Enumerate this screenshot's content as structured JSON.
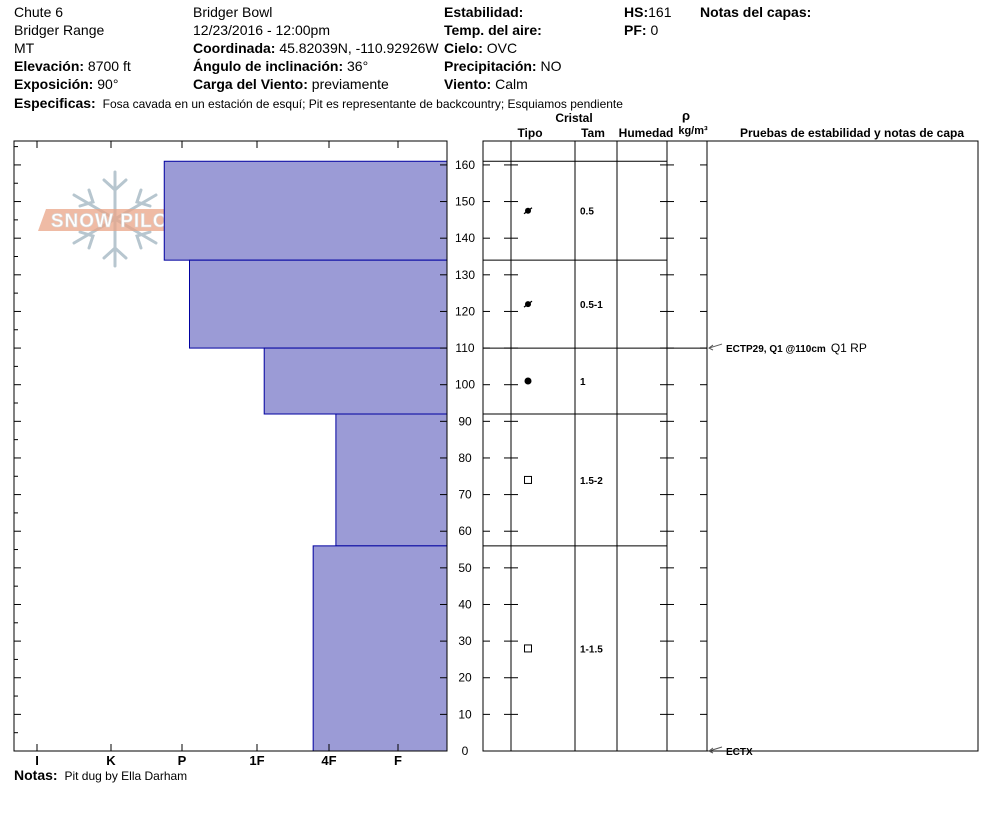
{
  "header": {
    "col1": [
      "Chute 6",
      "Bridger Range",
      "MT"
    ],
    "elevation": {
      "label": "Elevación:",
      "value": "8700 ft"
    },
    "aspect": {
      "label": "Exposición:",
      "value": "90°"
    },
    "col2": [
      "Bridger Bowl",
      "12/23/2016 - 12:00pm"
    ],
    "coordinate": {
      "label": "Coordinada:",
      "value": "45.82039N, -110.92926W"
    },
    "slope": {
      "label": "Ángulo de inclinación:",
      "value": "36°"
    },
    "wind_load": {
      "label": "Carga del Viento:",
      "value": "previamente"
    },
    "stability": {
      "label": "Estabilidad:",
      "value": ""
    },
    "air_temp": {
      "label": "Temp. del aire:",
      "value": ""
    },
    "sky": {
      "label": "Cielo:",
      "value": "OVC"
    },
    "precip": {
      "label": "Precipitación:",
      "value": "NO"
    },
    "wind": {
      "label": "Viento:",
      "value": "Calm"
    },
    "hs": {
      "label": "HS:",
      "value": "161"
    },
    "pf": {
      "label": "PF:",
      "value": "0"
    },
    "layer_notes": {
      "label": "Notas del capas:"
    },
    "specifics": {
      "label": "Especificas:",
      "value": "Fosa cavada en un estación de esquí; Pit es representante de backcountry; Esquiamos pendiente"
    }
  },
  "columns": {
    "crystal": "Cristal",
    "type": "Tipo",
    "size": "Tam",
    "moisture": "Humedad",
    "rho": "ρ",
    "density_unit": "kg/m³",
    "tests": "Pruebas de estabilidad y notas de capa"
  },
  "logo": {
    "text": "SNOW PILOT"
  },
  "notes": {
    "label": "Notas:",
    "value": "Pit dug by Ella Darham"
  },
  "chart_data": {
    "type": "bar",
    "ylim": [
      0,
      165
    ],
    "y_ticks": [
      0,
      10,
      20,
      30,
      40,
      50,
      60,
      70,
      80,
      90,
      100,
      110,
      120,
      130,
      140,
      150,
      160
    ],
    "hardness_scale": [
      "I",
      "K",
      "P",
      "1F",
      "4F",
      "F"
    ],
    "layers": [
      {
        "top": 161,
        "bottom": 134,
        "hardness": "P-",
        "hardness_value": 2.75,
        "grain_type": "decomposing",
        "size": "0.5"
      },
      {
        "top": 134,
        "bottom": 110,
        "hardness": "P+",
        "hardness_value": 3.1,
        "grain_type": "decomposing",
        "size": "0.5-1"
      },
      {
        "top": 110,
        "bottom": 92,
        "hardness": "1F",
        "hardness_value": 4.1,
        "grain_type": "rounded",
        "size": "1"
      },
      {
        "top": 92,
        "bottom": 56,
        "hardness": "4F",
        "hardness_value": 5.1,
        "grain_type": "faceted",
        "size": "1.5-2"
      },
      {
        "top": 56,
        "bottom": 0,
        "hardness": "4F+",
        "hardness_value": 4.78,
        "grain_type": "faceted",
        "size": "1-1.5"
      }
    ],
    "tests": [
      {
        "depth": 110,
        "label": "ECTP29, Q1 @110cm",
        "note": "Q1 RP"
      },
      {
        "depth": 0,
        "label": "ECTX",
        "note": ""
      }
    ]
  }
}
